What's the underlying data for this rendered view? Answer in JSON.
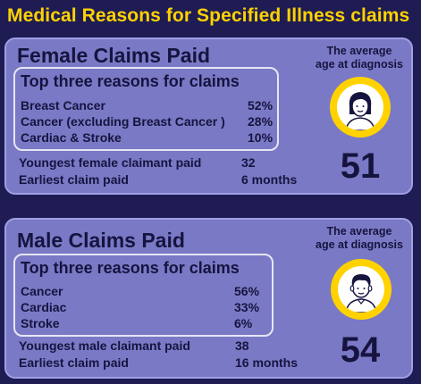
{
  "page_title": "Medical Reasons for Specified Illness claims",
  "female": {
    "title": "Female Claims Paid",
    "reasons_heading": "Top three reasons for claims",
    "reasons": [
      {
        "label": "Breast Cancer",
        "value": "52%"
      },
      {
        "label": "Cancer (excluding Breast Cancer )",
        "value": "28%"
      },
      {
        "label": "Cardiac & Stroke",
        "value": "10%"
      }
    ],
    "stats": [
      {
        "label": "Youngest female claimant paid",
        "value": "32"
      },
      {
        "label": "Earliest claim paid",
        "value": "6 months"
      }
    ],
    "avg_label_line1": "The average",
    "avg_label_line2": "age at diagnosis",
    "avg_age": "51",
    "avatar_icon": "female-avatar-icon"
  },
  "male": {
    "title": "Male Claims Paid",
    "reasons_heading": "Top three reasons for claims",
    "reasons": [
      {
        "label": "Cancer",
        "value": "56%"
      },
      {
        "label": "Cardiac",
        "value": "33%"
      },
      {
        "label": "Stroke",
        "value": "6%"
      }
    ],
    "stats": [
      {
        "label": "Youngest male claimant paid",
        "value": "38"
      },
      {
        "label": "Earliest claim paid",
        "value": "16 months"
      }
    ],
    "avg_label_line1": "The average",
    "avg_label_line2": "age at diagnosis",
    "avg_age": "54",
    "avatar_icon": "male-avatar-icon"
  },
  "colors": {
    "background": "#1f1c54",
    "title": "#ffd200",
    "panel": "#7a79c5",
    "text": "#16143f",
    "ring": "#ffd200"
  }
}
